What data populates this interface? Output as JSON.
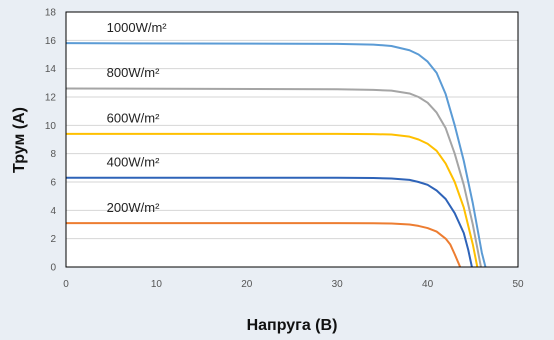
{
  "chart_data": {
    "type": "line",
    "xlabel": "Напруга (В)",
    "ylabel": "Трум (А)",
    "xlim": [
      0,
      50
    ],
    "ylim": [
      0,
      18
    ],
    "xticks": [
      0,
      10,
      20,
      30,
      40,
      50
    ],
    "yticks": [
      0,
      2,
      4,
      6,
      8,
      10,
      12,
      14,
      16,
      18
    ],
    "grid": "horizontal",
    "legend": "inline labels above curves",
    "series": [
      {
        "name": "1000W/m²",
        "color": "#5b9bd5",
        "x": [
          0,
          30,
          34,
          36,
          38,
          39,
          40,
          41,
          42,
          43,
          44,
          45,
          46,
          46.4
        ],
        "y": [
          15.8,
          15.75,
          15.7,
          15.6,
          15.3,
          15.0,
          14.5,
          13.7,
          12.2,
          10.0,
          7.5,
          4.5,
          1.0,
          0
        ]
      },
      {
        "name": "800W/m²",
        "color": "#a5a5a5",
        "x": [
          0,
          30,
          34,
          36,
          38,
          39,
          40,
          41,
          42,
          43,
          44,
          45,
          45.9
        ],
        "y": [
          12.6,
          12.55,
          12.5,
          12.45,
          12.25,
          12.0,
          11.6,
          10.9,
          9.8,
          8.0,
          5.8,
          3.0,
          0
        ]
      },
      {
        "name": "600W/m²",
        "color": "#ffc000",
        "x": [
          0,
          30,
          34,
          36,
          38,
          39,
          40,
          41,
          42,
          43,
          44,
          45,
          45.5
        ],
        "y": [
          9.4,
          9.4,
          9.38,
          9.35,
          9.2,
          9.0,
          8.7,
          8.2,
          7.3,
          6.0,
          4.2,
          1.6,
          0
        ]
      },
      {
        "name": "400W/m²",
        "color": "#2e63b8",
        "x": [
          0,
          30,
          34,
          36,
          38,
          39,
          40,
          41,
          42,
          43,
          44,
          44.5,
          44.9
        ],
        "y": [
          6.3,
          6.3,
          6.28,
          6.25,
          6.15,
          6.0,
          5.8,
          5.4,
          4.8,
          3.8,
          2.4,
          1.2,
          0
        ]
      },
      {
        "name": "200W/m²",
        "color": "#ed7d31",
        "x": [
          0,
          30,
          34,
          36,
          38,
          39,
          40,
          41,
          42,
          42.5,
          43,
          43.6
        ],
        "y": [
          3.1,
          3.1,
          3.09,
          3.07,
          3.0,
          2.9,
          2.75,
          2.5,
          2.0,
          1.6,
          0.9,
          0
        ]
      }
    ],
    "labels": [
      {
        "text": "1000W/m²",
        "x": 4.5,
        "y": 16.6
      },
      {
        "text": "800W/m²",
        "x": 4.5,
        "y": 13.4
      },
      {
        "text": "600W/m²",
        "x": 4.5,
        "y": 10.2
      },
      {
        "text": "400W/m²",
        "x": 4.5,
        "y": 7.1
      },
      {
        "text": "200W/m²",
        "x": 4.5,
        "y": 3.9
      }
    ],
    "style": {
      "background": "#e9eef4",
      "plot_background": "#ffffff",
      "grid_color": "#d6d6d6",
      "axis_color": "#000000"
    }
  }
}
